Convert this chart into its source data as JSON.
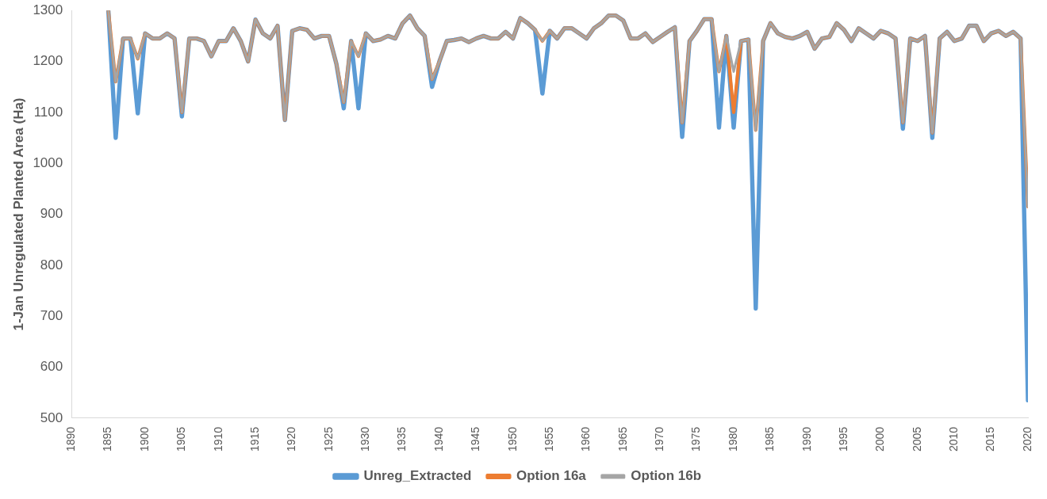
{
  "chart_data": {
    "type": "line",
    "ylabel": "1-Jan Unregulated Planted Area (Ha)",
    "x": [
      1895,
      1896,
      1897,
      1898,
      1899,
      1900,
      1901,
      1902,
      1903,
      1904,
      1905,
      1906,
      1907,
      1908,
      1909,
      1910,
      1911,
      1912,
      1913,
      1914,
      1915,
      1916,
      1917,
      1918,
      1919,
      1920,
      1921,
      1922,
      1923,
      1924,
      1925,
      1926,
      1927,
      1928,
      1929,
      1930,
      1931,
      1932,
      1933,
      1934,
      1935,
      1936,
      1937,
      1938,
      1939,
      1940,
      1941,
      1942,
      1943,
      1944,
      1945,
      1946,
      1947,
      1948,
      1949,
      1950,
      1951,
      1952,
      1953,
      1954,
      1955,
      1956,
      1957,
      1958,
      1959,
      1960,
      1961,
      1962,
      1963,
      1964,
      1965,
      1966,
      1967,
      1968,
      1969,
      1970,
      1971,
      1972,
      1973,
      1974,
      1975,
      1976,
      1977,
      1978,
      1979,
      1980,
      1981,
      1982,
      1983,
      1984,
      1985,
      1986,
      1987,
      1988,
      1989,
      1990,
      1991,
      1992,
      1993,
      1994,
      1995,
      1996,
      1997,
      1998,
      1999,
      2000,
      2001,
      2002,
      2003,
      2004,
      2005,
      2006,
      2007,
      2008,
      2009,
      2010,
      2011,
      2012,
      2013,
      2014,
      2015,
      2016,
      2017,
      2018,
      2019,
      2020
    ],
    "series": [
      {
        "name": "Unreg_Extracted",
        "color": "#5b9bd5",
        "values": [
          1300,
          1050,
          1245,
          1245,
          1098,
          1255,
          1245,
          1245,
          1255,
          1245,
          1092,
          1245,
          1245,
          1240,
          1210,
          1240,
          1240,
          1265,
          1240,
          1200,
          1282,
          1255,
          1245,
          1270,
          1085,
          1260,
          1265,
          1262,
          1245,
          1250,
          1250,
          1195,
          1108,
          1240,
          1108,
          1255,
          1240,
          1243,
          1250,
          1245,
          1275,
          1290,
          1265,
          1250,
          1150,
          1200,
          1240,
          1242,
          1245,
          1238,
          1245,
          1250,
          1245,
          1245,
          1258,
          1245,
          1285,
          1275,
          1262,
          1137,
          1260,
          1245,
          1265,
          1265,
          1255,
          1245,
          1265,
          1275,
          1290,
          1290,
          1280,
          1245,
          1245,
          1255,
          1238,
          1248,
          1258,
          1267,
          1052,
          1240,
          1260,
          1283,
          1283,
          1070,
          1250,
          1070,
          1240,
          1243,
          715,
          1240,
          1275,
          1255,
          1248,
          1245,
          1250,
          1258,
          1225,
          1245,
          1248,
          1275,
          1262,
          1240,
          1265,
          1255,
          1245,
          1260,
          1255,
          1245,
          1068,
          1245,
          1240,
          1250,
          1050,
          1245,
          1258,
          1240,
          1245,
          1270,
          1270,
          1240,
          1255,
          1260,
          1250,
          1258,
          1245,
          535
        ]
      },
      {
        "name": "Option 16a",
        "color": "#ed7d31",
        "values": [
          1300,
          1160,
          1245,
          1245,
          1205,
          1255,
          1245,
          1245,
          1255,
          1245,
          1100,
          1245,
          1245,
          1240,
          1210,
          1240,
          1240,
          1265,
          1240,
          1200,
          1282,
          1255,
          1245,
          1270,
          1085,
          1260,
          1265,
          1262,
          1245,
          1250,
          1250,
          1195,
          1120,
          1240,
          1210,
          1255,
          1240,
          1243,
          1250,
          1245,
          1275,
          1290,
          1265,
          1250,
          1165,
          1200,
          1240,
          1242,
          1245,
          1238,
          1245,
          1250,
          1245,
          1245,
          1258,
          1245,
          1285,
          1275,
          1262,
          1240,
          1260,
          1245,
          1265,
          1265,
          1255,
          1245,
          1265,
          1275,
          1290,
          1290,
          1280,
          1245,
          1245,
          1255,
          1238,
          1248,
          1258,
          1267,
          1080,
          1240,
          1260,
          1283,
          1283,
          1180,
          1250,
          1100,
          1240,
          1243,
          1065,
          1240,
          1275,
          1255,
          1248,
          1245,
          1250,
          1258,
          1225,
          1245,
          1248,
          1275,
          1262,
          1240,
          1265,
          1255,
          1245,
          1260,
          1255,
          1245,
          1080,
          1245,
          1240,
          1250,
          1060,
          1245,
          1258,
          1240,
          1245,
          1270,
          1270,
          1240,
          1255,
          1260,
          1250,
          1258,
          1245,
          915
        ]
      },
      {
        "name": "Option 16b",
        "color": "#a5a5a5",
        "values": [
          1300,
          1160,
          1245,
          1245,
          1205,
          1255,
          1245,
          1245,
          1255,
          1245,
          1100,
          1245,
          1245,
          1240,
          1210,
          1240,
          1240,
          1265,
          1240,
          1200,
          1282,
          1255,
          1245,
          1270,
          1085,
          1260,
          1265,
          1262,
          1245,
          1250,
          1250,
          1195,
          1120,
          1240,
          1210,
          1255,
          1240,
          1243,
          1250,
          1245,
          1275,
          1290,
          1265,
          1250,
          1165,
          1200,
          1240,
          1242,
          1245,
          1238,
          1245,
          1250,
          1245,
          1245,
          1258,
          1245,
          1285,
          1275,
          1262,
          1240,
          1260,
          1245,
          1265,
          1265,
          1255,
          1245,
          1265,
          1275,
          1290,
          1290,
          1280,
          1245,
          1245,
          1255,
          1238,
          1248,
          1258,
          1267,
          1080,
          1240,
          1260,
          1283,
          1283,
          1180,
          1250,
          1180,
          1240,
          1243,
          1065,
          1240,
          1275,
          1255,
          1248,
          1245,
          1250,
          1258,
          1225,
          1245,
          1248,
          1275,
          1262,
          1240,
          1265,
          1255,
          1245,
          1260,
          1255,
          1245,
          1080,
          1245,
          1240,
          1250,
          1060,
          1245,
          1258,
          1240,
          1245,
          1270,
          1270,
          1240,
          1255,
          1260,
          1250,
          1258,
          1245,
          915
        ]
      }
    ],
    "xlim": [
      1890,
      2020
    ],
    "xticks": [
      1890,
      1895,
      1900,
      1905,
      1910,
      1915,
      1920,
      1925,
      1930,
      1935,
      1940,
      1945,
      1950,
      1955,
      1960,
      1965,
      1970,
      1975,
      1980,
      1985,
      1990,
      1995,
      2000,
      2005,
      2010,
      2015,
      2020
    ],
    "ylim": [
      500,
      1300
    ],
    "yticks": [
      500,
      600,
      700,
      800,
      900,
      1000,
      1100,
      1200,
      1300
    ],
    "grid": false,
    "legend": "bottom",
    "marker": "none",
    "line_style": "solid"
  }
}
